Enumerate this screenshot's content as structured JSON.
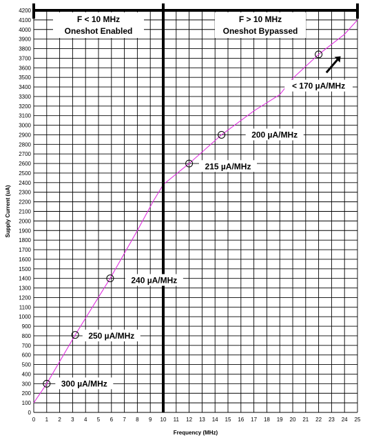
{
  "chart_data": {
    "type": "line",
    "xlabel": "Frequency (MHz)",
    "ylabel": "Supply Current (uA)",
    "xlim": [
      0,
      25
    ],
    "ylim": [
      0,
      4200
    ],
    "x_ticks": [
      0,
      1,
      2,
      3,
      4,
      5,
      6,
      7,
      8,
      9,
      10,
      11,
      12,
      13,
      14,
      15,
      16,
      17,
      18,
      19,
      20,
      21,
      22,
      23,
      24,
      25
    ],
    "y_ticks": [
      0,
      100,
      200,
      300,
      400,
      500,
      600,
      700,
      800,
      900,
      1000,
      1100,
      1200,
      1300,
      1400,
      1500,
      1600,
      1700,
      1800,
      1900,
      2000,
      2100,
      2200,
      2300,
      2400,
      2500,
      2600,
      2700,
      2800,
      2900,
      3000,
      3100,
      3200,
      3300,
      3400,
      3500,
      3600,
      3700,
      3800,
      3900,
      4000,
      4100,
      4200
    ],
    "grid": true,
    "series": [
      {
        "color": "#e030e0",
        "x": [
          0,
          1,
          3.2,
          5.9,
          8,
          9.2,
          10,
          12,
          14.5,
          17,
          19,
          20,
          22,
          24,
          25
        ],
        "y": [
          100,
          300,
          810,
          1400,
          1900,
          2200,
          2380,
          2600,
          2900,
          3150,
          3320,
          3490,
          3740,
          3950,
          4100
        ]
      }
    ],
    "markers": [
      {
        "x": 1,
        "y": 300
      },
      {
        "x": 3.2,
        "y": 810
      },
      {
        "x": 5.9,
        "y": 1400
      },
      {
        "x": 12,
        "y": 2600
      },
      {
        "x": 14.5,
        "y": 2900
      },
      {
        "x": 22,
        "y": 3740
      }
    ],
    "divider_x": 10,
    "regions": [
      {
        "line1": "F < 10 MHz",
        "line2": "Oneshot Enabled",
        "x": 5
      },
      {
        "line1": "F > 10 MHz",
        "line2": "Oneshot Bypassed",
        "x": 17.5
      }
    ],
    "annotations": [
      {
        "text": "300 µA/MHz",
        "x": 3.9,
        "y": 300
      },
      {
        "text": "250 µA/MHz",
        "x": 6,
        "y": 800
      },
      {
        "text": "240 µA/MHz",
        "x": 9.3,
        "y": 1380
      },
      {
        "text": "215 µA/MHz",
        "x": 15,
        "y": 2570
      },
      {
        "text": "200 µA/MHz",
        "x": 18.6,
        "y": 2900
      },
      {
        "text": "< 170 µA/MHz",
        "x": 22,
        "y": 3410
      }
    ]
  }
}
